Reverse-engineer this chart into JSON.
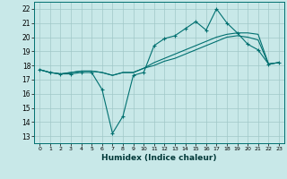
{
  "title": "",
  "xlabel": "Humidex (Indice chaleur)",
  "x_ticks": [
    0,
    1,
    2,
    3,
    4,
    5,
    6,
    7,
    8,
    9,
    10,
    11,
    12,
    13,
    14,
    15,
    16,
    17,
    18,
    19,
    20,
    21,
    22,
    23
  ],
  "ylim": [
    12.5,
    22.5
  ],
  "xlim": [
    -0.5,
    23.5
  ],
  "yticks": [
    13,
    14,
    15,
    16,
    17,
    18,
    19,
    20,
    21,
    22
  ],
  "bg_color": "#c8e8e8",
  "grid_color": "#a0c8c8",
  "line_color": "#007070",
  "line1_x": [
    0,
    1,
    2,
    3,
    4,
    5,
    6,
    7,
    8,
    9,
    10,
    11,
    12,
    13,
    14,
    15,
    16,
    17,
    18,
    19,
    20,
    21,
    22,
    23
  ],
  "line1_y": [
    17.7,
    17.5,
    17.4,
    17.4,
    17.5,
    17.5,
    16.3,
    13.2,
    14.4,
    17.3,
    17.5,
    19.4,
    19.9,
    20.1,
    20.6,
    21.1,
    20.5,
    22.0,
    21.0,
    20.3,
    19.5,
    19.1,
    18.1,
    18.2
  ],
  "line2_x": [
    0,
    1,
    2,
    3,
    4,
    5,
    6,
    7,
    8,
    9,
    10,
    11,
    12,
    13,
    14,
    15,
    16,
    17,
    18,
    19,
    20,
    21,
    22,
    23
  ],
  "line2_y": [
    17.7,
    17.5,
    17.4,
    17.5,
    17.6,
    17.6,
    17.5,
    17.3,
    17.5,
    17.5,
    17.8,
    18.2,
    18.5,
    18.8,
    19.1,
    19.4,
    19.7,
    20.0,
    20.2,
    20.3,
    20.3,
    20.2,
    18.1,
    18.2
  ],
  "line3_x": [
    0,
    1,
    2,
    3,
    4,
    5,
    6,
    7,
    8,
    9,
    10,
    11,
    12,
    13,
    14,
    15,
    16,
    17,
    18,
    19,
    20,
    21,
    22,
    23
  ],
  "line3_y": [
    17.7,
    17.5,
    17.4,
    17.5,
    17.6,
    17.6,
    17.5,
    17.3,
    17.5,
    17.5,
    17.8,
    18.0,
    18.3,
    18.5,
    18.8,
    19.1,
    19.4,
    19.7,
    20.0,
    20.1,
    20.0,
    19.8,
    18.1,
    18.2
  ],
  "tick_fontsize": 5.5,
  "xlabel_fontsize": 6.5
}
